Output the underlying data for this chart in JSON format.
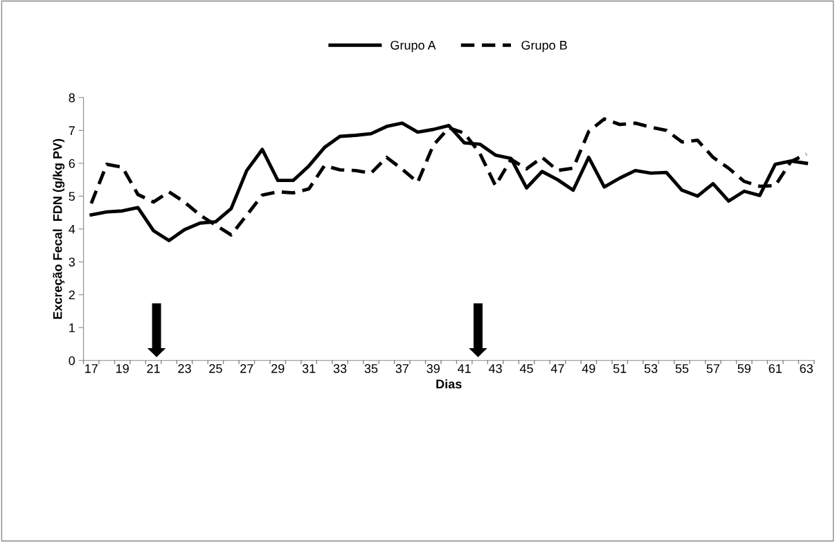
{
  "chart_data": {
    "type": "line",
    "xlabel": "Dias",
    "ylabel": "Excreção Fecal  FDN (g/kg PV)",
    "categories": [
      "17",
      null,
      "19",
      null,
      "21",
      null,
      "23",
      null,
      "25",
      null,
      "27",
      null,
      "29",
      null,
      "31",
      null,
      "33",
      null,
      "35",
      null,
      "37",
      null,
      "39",
      null,
      "41",
      null,
      "43",
      null,
      "45",
      null,
      "47",
      null,
      "49",
      null,
      "51",
      null,
      "53",
      null,
      "55",
      null,
      "57",
      null,
      "59",
      null,
      "61",
      null,
      "63"
    ],
    "ylim": [
      0,
      8
    ],
    "yticks": [
      0,
      1,
      2,
      3,
      4,
      5,
      6,
      7,
      8
    ],
    "grid": false,
    "legend": "top",
    "marker": "none",
    "series": [
      {
        "name": "Grupo A",
        "color": "#000000",
        "line_style": "solid",
        "values": [
          4.43,
          4.52,
          4.55,
          4.65,
          3.95,
          3.65,
          3.98,
          4.18,
          4.22,
          4.62,
          5.78,
          6.42,
          5.48,
          5.48,
          5.92,
          6.48,
          6.82,
          6.85,
          6.9,
          7.12,
          7.22,
          6.95,
          7.03,
          7.15,
          6.62,
          6.58,
          6.25,
          6.15,
          5.25,
          5.75,
          5.5,
          5.18,
          6.18,
          5.28,
          5.55,
          5.78,
          5.7,
          5.72,
          5.18,
          5.0,
          5.38,
          4.85,
          5.15,
          5.02,
          5.97,
          6.07,
          6.0
        ]
      },
      {
        "name": "Grupo B",
        "color": "#000000",
        "line_style": "dashed",
        "values": [
          4.78,
          5.97,
          5.88,
          5.05,
          4.82,
          5.13,
          4.82,
          4.42,
          4.12,
          3.82,
          4.42,
          5.03,
          5.13,
          5.1,
          5.22,
          5.93,
          5.8,
          5.78,
          5.7,
          6.18,
          5.82,
          5.42,
          6.55,
          7.08,
          6.92,
          6.3,
          5.32,
          6.12,
          5.83,
          6.18,
          5.78,
          5.85,
          6.97,
          7.35,
          7.18,
          7.22,
          7.1,
          7.0,
          6.65,
          6.7,
          6.18,
          5.85,
          5.45,
          5.3,
          5.32,
          6.05,
          6.28
        ]
      }
    ]
  }
}
